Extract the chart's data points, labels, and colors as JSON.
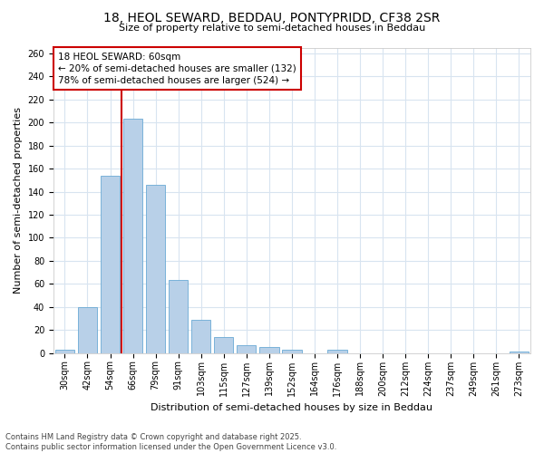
{
  "title_line1": "18, HEOL SEWARD, BEDDAU, PONTYPRIDD, CF38 2SR",
  "title_line2": "Size of property relative to semi-detached houses in Beddau",
  "categories": [
    "30sqm",
    "42sqm",
    "54sqm",
    "66sqm",
    "79sqm",
    "91sqm",
    "103sqm",
    "115sqm",
    "127sqm",
    "139sqm",
    "152sqm",
    "164sqm",
    "176sqm",
    "188sqm",
    "200sqm",
    "212sqm",
    "224sqm",
    "237sqm",
    "249sqm",
    "261sqm",
    "273sqm"
  ],
  "values": [
    3,
    40,
    154,
    203,
    146,
    63,
    29,
    14,
    7,
    5,
    3,
    0,
    3,
    0,
    0,
    0,
    0,
    0,
    0,
    0,
    1
  ],
  "bar_color": "#b8d0e8",
  "bar_edge_color": "#6aaad4",
  "vline_color": "#cc0000",
  "vline_x": 2.5,
  "annotation_title": "18 HEOL SEWARD: 60sqm",
  "annotation_smaller": "← 20% of semi-detached houses are smaller (132)",
  "annotation_larger": "78% of semi-detached houses are larger (524) →",
  "annotation_box_edgecolor": "#cc0000",
  "ylabel": "Number of semi-detached properties",
  "xlabel": "Distribution of semi-detached houses by size in Beddau",
  "ylim": [
    0,
    265
  ],
  "yticks": [
    0,
    20,
    40,
    60,
    80,
    100,
    120,
    140,
    160,
    180,
    200,
    220,
    240,
    260
  ],
  "footer_line1": "Contains HM Land Registry data © Crown copyright and database right 2025.",
  "footer_line2": "Contains public sector information licensed under the Open Government Licence v3.0.",
  "background_color": "#ffffff",
  "plot_background": "#ffffff",
  "grid_color": "#d8e4f0",
  "title_fontsize": 10,
  "subtitle_fontsize": 8,
  "ylabel_fontsize": 8,
  "xlabel_fontsize": 8,
  "tick_fontsize": 7,
  "footer_fontsize": 6,
  "annot_fontsize": 7.5
}
